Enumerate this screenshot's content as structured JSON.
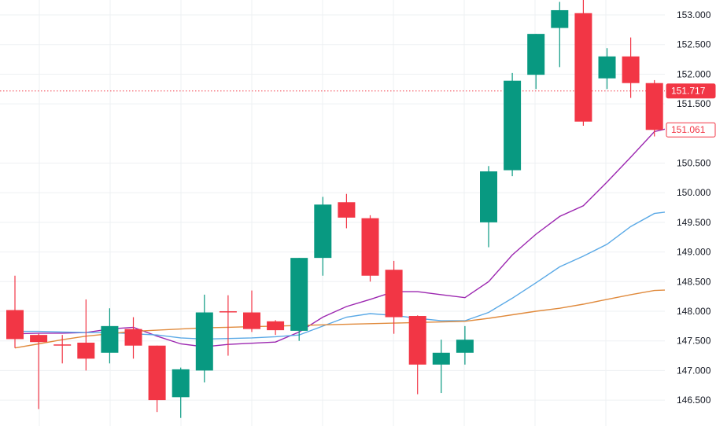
{
  "chart_data": {
    "type": "candlestick",
    "title": "",
    "xlabel": "",
    "ylabel": "",
    "ylim": [
      146.3,
      153.2
    ],
    "y_ticks": [
      {
        "value": 153.0,
        "label": "153.000"
      },
      {
        "value": 152.5,
        "label": "152.500"
      },
      {
        "value": 152.0,
        "label": "152.000"
      },
      {
        "value": 151.5,
        "label": "151.500"
      },
      {
        "value": 150.5,
        "label": "150.500"
      },
      {
        "value": 150.0,
        "label": "150.000"
      },
      {
        "value": 149.5,
        "label": "149.500"
      },
      {
        "value": 149.0,
        "label": "149.000"
      },
      {
        "value": 148.5,
        "label": "148.500"
      },
      {
        "value": 148.0,
        "label": "148.000"
      },
      {
        "value": 147.5,
        "label": "147.500"
      },
      {
        "value": 147.0,
        "label": "147.000"
      },
      {
        "value": 146.5,
        "label": "146.500"
      }
    ],
    "grid": true,
    "colors": {
      "up": "#089981",
      "down": "#f23645",
      "ma_fast": "#9c27b0",
      "ma_medium": "#5aa9e6",
      "ma_slow": "#e08a3c",
      "grid": "#eef0f3",
      "axis_text": "#131722"
    },
    "candles": [
      {
        "open": 148.02,
        "high": 148.6,
        "low": 147.38,
        "close": 147.53
      },
      {
        "open": 147.6,
        "high": 147.62,
        "low": 146.35,
        "close": 147.48
      },
      {
        "open": 147.44,
        "high": 147.6,
        "low": 147.12,
        "close": 147.42
      },
      {
        "open": 147.47,
        "high": 148.2,
        "low": 147.0,
        "close": 147.2
      },
      {
        "open": 147.3,
        "high": 148.05,
        "low": 147.12,
        "close": 147.75
      },
      {
        "open": 147.7,
        "high": 147.9,
        "low": 147.2,
        "close": 147.42
      },
      {
        "open": 147.42,
        "high": 147.42,
        "low": 146.3,
        "close": 146.5
      },
      {
        "open": 146.55,
        "high": 147.05,
        "low": 146.2,
        "close": 147.02
      },
      {
        "open": 147.0,
        "high": 148.28,
        "low": 146.8,
        "close": 147.98
      },
      {
        "open": 148.0,
        "high": 148.27,
        "low": 147.25,
        "close": 147.98
      },
      {
        "open": 147.98,
        "high": 148.35,
        "low": 147.65,
        "close": 147.7
      },
      {
        "open": 147.83,
        "high": 147.85,
        "low": 147.6,
        "close": 147.68
      },
      {
        "open": 147.67,
        "high": 148.9,
        "low": 147.5,
        "close": 148.9
      },
      {
        "open": 148.9,
        "high": 149.93,
        "low": 148.6,
        "close": 149.8
      },
      {
        "open": 149.84,
        "high": 149.98,
        "low": 149.4,
        "close": 149.58
      },
      {
        "open": 149.57,
        "high": 149.62,
        "low": 148.5,
        "close": 148.6
      },
      {
        "open": 148.7,
        "high": 148.85,
        "low": 147.62,
        "close": 147.9
      },
      {
        "open": 147.92,
        "high": 147.93,
        "low": 146.6,
        "close": 147.1
      },
      {
        "open": 147.1,
        "high": 147.52,
        "low": 146.62,
        "close": 147.3
      },
      {
        "open": 147.3,
        "high": 147.75,
        "low": 147.1,
        "close": 147.52
      },
      {
        "open": 149.5,
        "high": 150.45,
        "low": 149.08,
        "close": 150.36
      },
      {
        "open": 150.38,
        "high": 152.02,
        "low": 150.28,
        "close": 151.89
      },
      {
        "open": 151.99,
        "high": 152.68,
        "low": 151.75,
        "close": 152.68
      },
      {
        "open": 152.78,
        "high": 153.22,
        "low": 152.12,
        "close": 153.08
      },
      {
        "open": 153.03,
        "high": 153.3,
        "low": 151.13,
        "close": 151.2
      },
      {
        "open": 151.93,
        "high": 152.44,
        "low": 151.75,
        "close": 152.3
      },
      {
        "open": 152.3,
        "high": 152.62,
        "low": 151.6,
        "close": 151.85
      },
      {
        "open": 151.85,
        "high": 151.9,
        "low": 150.95,
        "close": 151.06
      }
    ],
    "moving_averages": [
      {
        "name": "",
        "color": "#9c27b0",
        "values": [
          147.62,
          147.63,
          147.63,
          147.64,
          147.7,
          147.73,
          147.58,
          147.45,
          147.4,
          147.44,
          147.46,
          147.48,
          147.65,
          147.9,
          148.08,
          148.2,
          148.33,
          148.33,
          148.28,
          148.23,
          148.5,
          148.95,
          149.3,
          149.6,
          149.78,
          150.18,
          150.6,
          151.03
        ]
      },
      {
        "name": "",
        "color": "#5aa9e6",
        "values": [
          147.66,
          147.66,
          147.65,
          147.64,
          147.64,
          147.62,
          147.6,
          147.55,
          147.53,
          147.54,
          147.55,
          147.57,
          147.6,
          147.75,
          147.9,
          147.96,
          147.93,
          147.88,
          147.84,
          147.84,
          147.98,
          148.22,
          148.48,
          148.75,
          148.93,
          149.13,
          149.43,
          149.65
        ]
      },
      {
        "name": "",
        "color": "#e08a3c",
        "values": [
          147.38,
          147.45,
          147.52,
          147.58,
          147.62,
          147.66,
          147.68,
          147.7,
          147.72,
          147.73,
          147.74,
          147.75,
          147.76,
          147.77,
          147.78,
          147.79,
          147.8,
          147.81,
          147.82,
          147.83,
          147.88,
          147.94,
          148.0,
          148.05,
          148.12,
          148.2,
          148.28,
          148.35
        ]
      }
    ],
    "reference_lines": [
      {
        "value": 151.717,
        "label": "151.717",
        "style": "dotted",
        "color": "#f23645",
        "badge": "filled"
      },
      {
        "value": 151.061,
        "label": "151.061",
        "style": "none",
        "color": "#f23645",
        "badge": "outlined"
      }
    ]
  }
}
